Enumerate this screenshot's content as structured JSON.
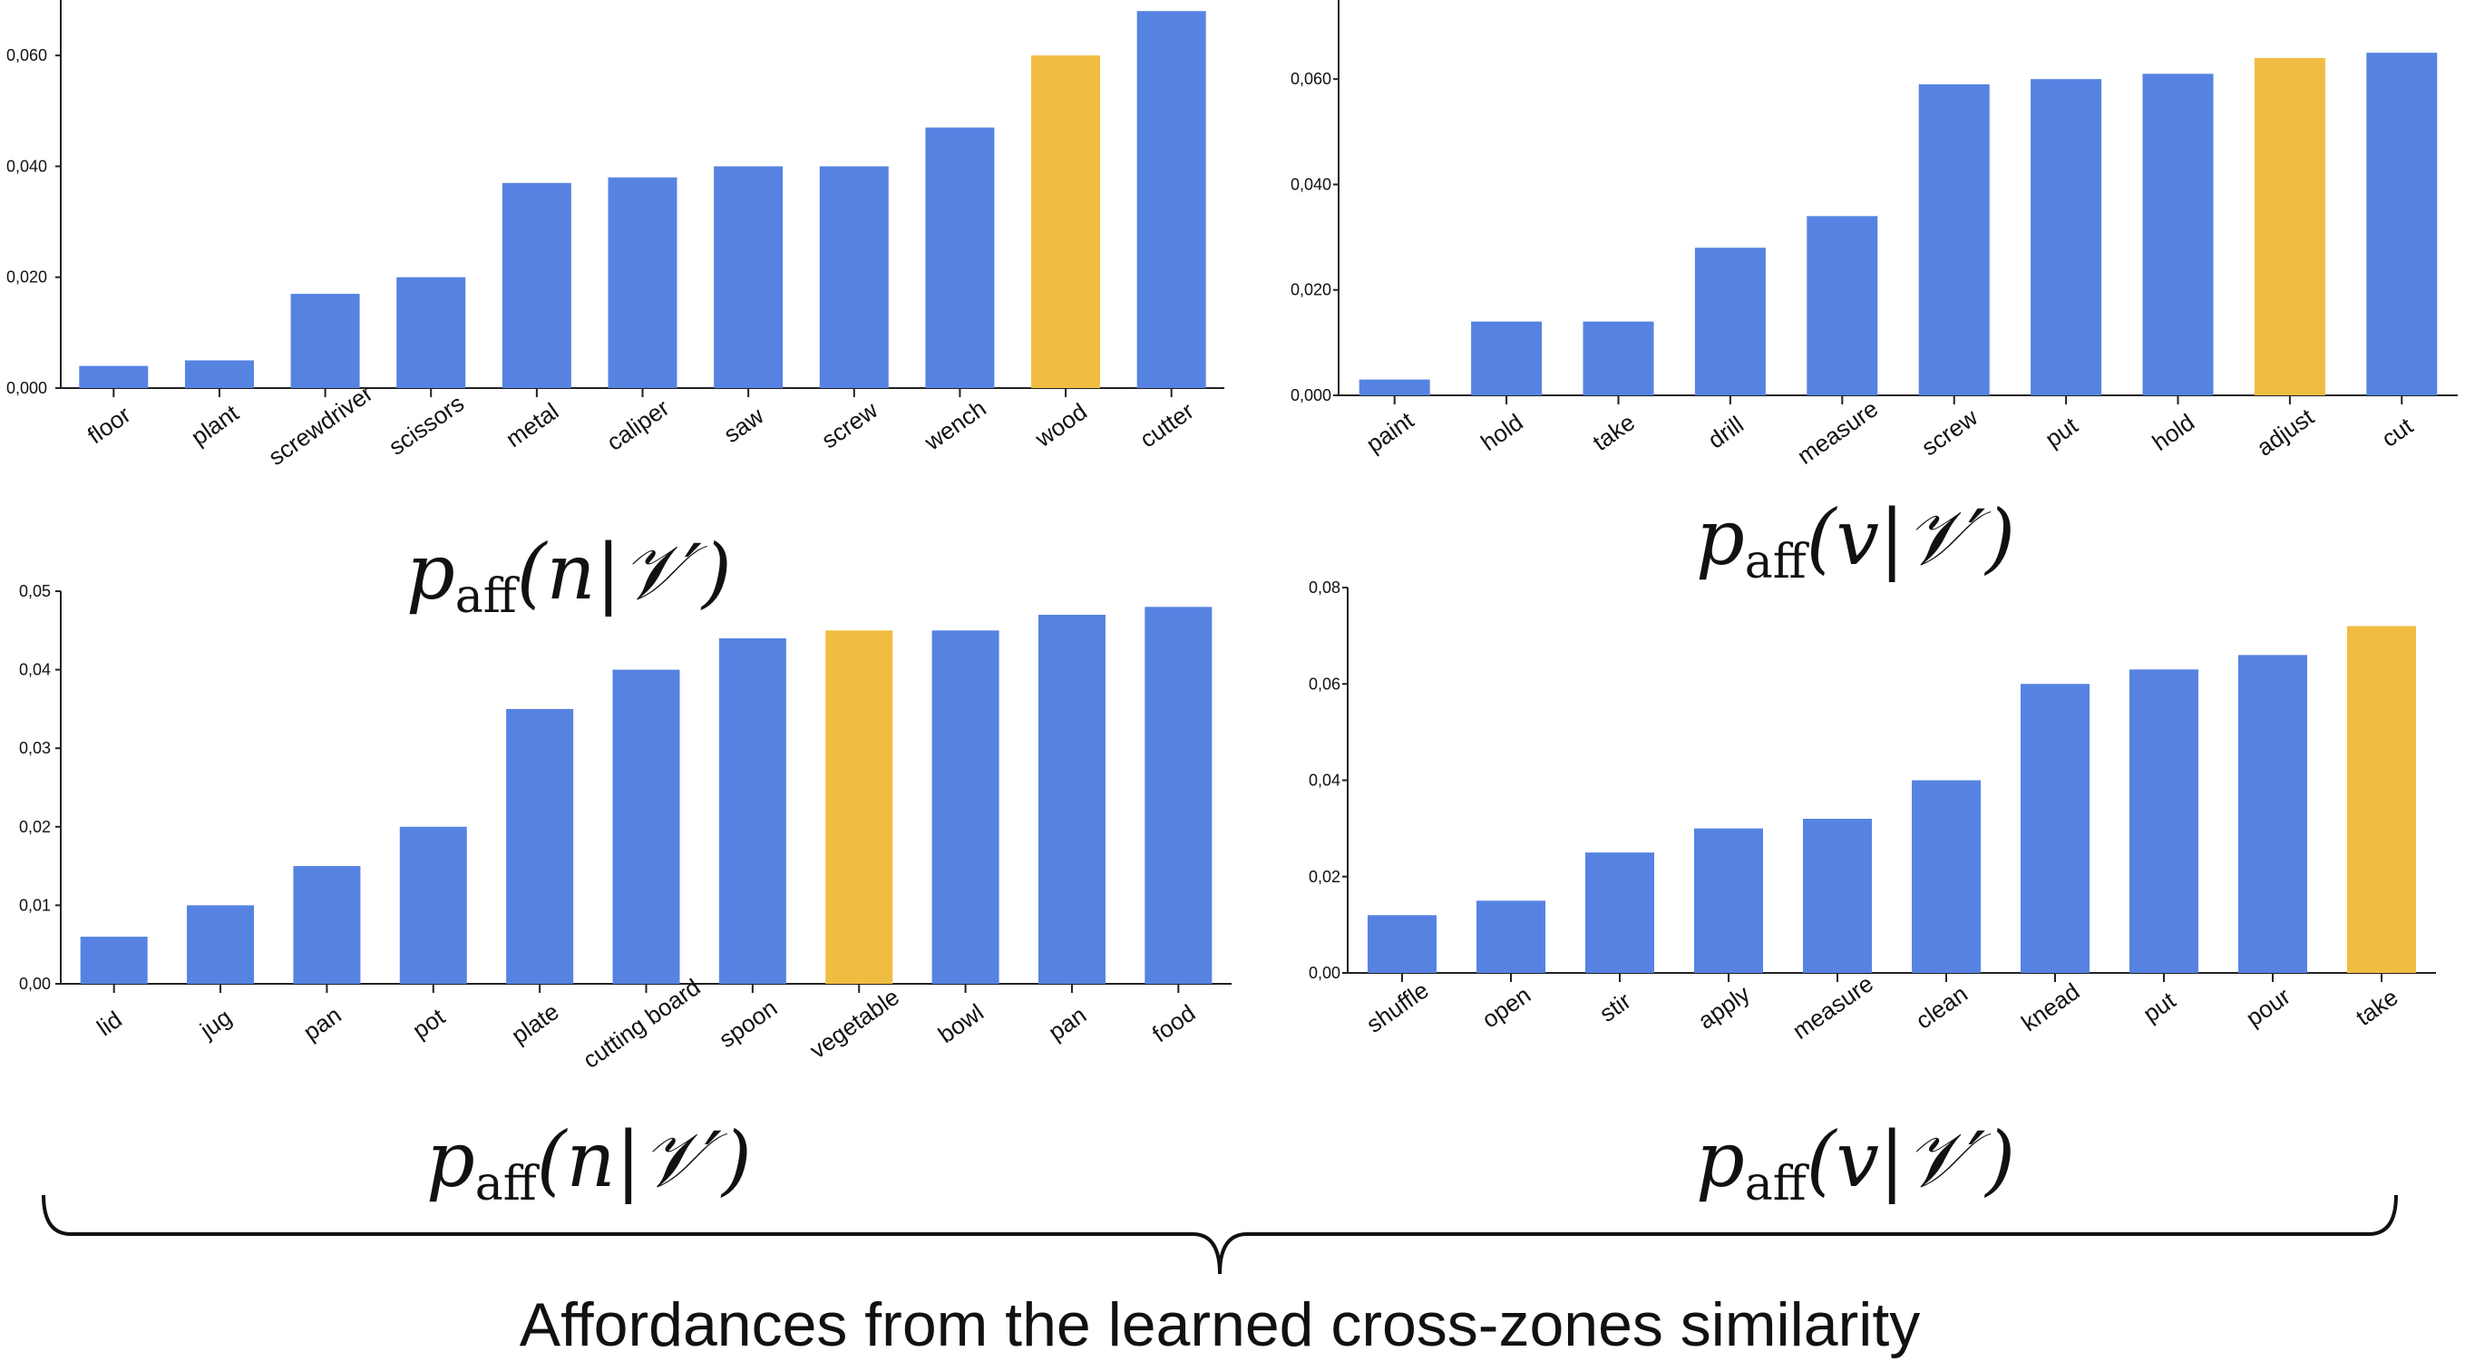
{
  "colors": {
    "bar": "#5683e2",
    "highlight": "#f0bd42",
    "axis": "#222222"
  },
  "chart_data": [
    {
      "type": "bar",
      "title": "",
      "xlabel": "p_aff(n|V′)",
      "xlabel_parts": {
        "p": "p",
        "sub": "aff",
        "arg": "(n|𝒱′)"
      },
      "ylabel": "",
      "ylim": [
        0,
        0.07
      ],
      "yticks": [
        0,
        0.02,
        0.04,
        0.06
      ],
      "ytick_labels": [
        "0,000",
        "0,020",
        "0,040",
        "0,060"
      ],
      "categories": [
        "floor",
        "plant",
        "screwdriver",
        "scissors",
        "metal",
        "caliper",
        "saw",
        "screw",
        "wench",
        "wood",
        "cutter"
      ],
      "values": [
        0.004,
        0.005,
        0.017,
        0.02,
        0.037,
        0.038,
        0.04,
        0.04,
        0.047,
        0.06,
        0.068
      ],
      "highlight_category": "wood"
    },
    {
      "type": "bar",
      "title": "",
      "xlabel": "p_aff(v|V′)",
      "xlabel_parts": {
        "p": "p",
        "sub": "aff",
        "arg": "(v|𝒱′)"
      },
      "ylabel": "",
      "ylim": [
        0,
        0.075
      ],
      "yticks": [
        0,
        0.02,
        0.04,
        0.06
      ],
      "ytick_labels": [
        "0,000",
        "0,020",
        "0,040",
        "0,060"
      ],
      "categories": [
        "paint",
        "hold",
        "take",
        "drill",
        "measure",
        "screw",
        "put",
        "hold",
        "adjust",
        "cut"
      ],
      "values": [
        0.003,
        0.014,
        0.014,
        0.028,
        0.034,
        0.059,
        0.06,
        0.061,
        0.064,
        0.065
      ],
      "highlight_category": "adjust"
    },
    {
      "type": "bar",
      "title": "",
      "xlabel": "p_aff(n|V′)",
      "xlabel_parts": {
        "p": "p",
        "sub": "aff",
        "arg": "(n|𝒱′)"
      },
      "ylabel": "",
      "ylim": [
        0,
        0.05
      ],
      "yticks": [
        0,
        0.01,
        0.02,
        0.03,
        0.04,
        0.05
      ],
      "ytick_labels": [
        "0,00",
        "0,01",
        "0,02",
        "0,03",
        "0,04",
        "0,05"
      ],
      "categories": [
        "lid",
        "jug",
        "pan",
        "pot",
        "plate",
        "cutting board",
        "spoon",
        "vegetable",
        "bowl",
        "pan",
        "food"
      ],
      "values": [
        0.006,
        0.01,
        0.015,
        0.02,
        0.035,
        0.04,
        0.044,
        0.045,
        0.045,
        0.047,
        0.048
      ],
      "highlight_category": "vegetable"
    },
    {
      "type": "bar",
      "title": "",
      "xlabel": "p_aff(v|V′)",
      "xlabel_parts": {
        "p": "p",
        "sub": "aff",
        "arg": "(v|𝒱′)"
      },
      "ylabel": "",
      "ylim": [
        0,
        0.08
      ],
      "yticks": [
        0,
        0.02,
        0.04,
        0.06,
        0.08
      ],
      "ytick_labels": [
        "0,00",
        "0,02",
        "0,04",
        "0,06",
        "0,08"
      ],
      "categories": [
        "shuffle",
        "open",
        "stir",
        "apply",
        "measure",
        "clean",
        "knead",
        "put",
        "pour",
        "take"
      ],
      "values": [
        0.012,
        0.015,
        0.025,
        0.03,
        0.032,
        0.04,
        0.06,
        0.063,
        0.066,
        0.072
      ],
      "highlight_category": "take"
    }
  ],
  "caption": "Affordances from the learned cross-zones similarity"
}
